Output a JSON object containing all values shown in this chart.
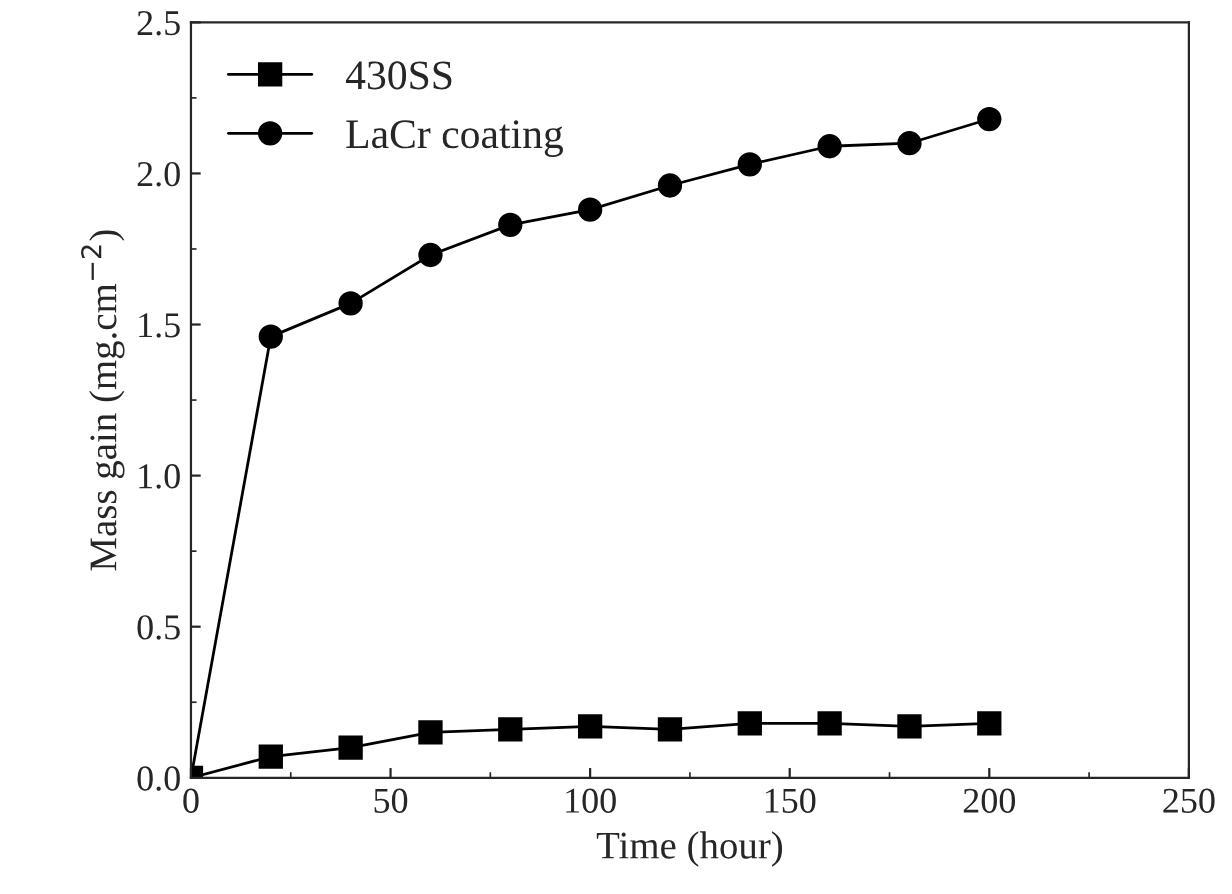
{
  "chart_data": {
    "type": "line",
    "xlabel": "Time (hour)",
    "ylabel": "Mass gain (mg.cm$^{−2}$)",
    "x": [
      0,
      20,
      40,
      60,
      80,
      100,
      120,
      140,
      160,
      180,
      200
    ],
    "series": [
      {
        "name": "430SS",
        "color": "#000000",
        "marker": "square",
        "values": [
          0,
          0.07,
          0.1,
          0.15,
          0.16,
          0.17,
          0.16,
          0.18,
          0.18,
          0.17,
          0.18
        ]
      },
      {
        "name": "LaCr coating",
        "color": "#000000",
        "marker": "circle",
        "values": [
          0,
          1.46,
          1.57,
          1.73,
          1.83,
          1.88,
          1.96,
          2.03,
          2.09,
          2.1,
          2.18
        ]
      }
    ],
    "xlim": [
      0,
      250
    ],
    "xticks": [
      0,
      50,
      100,
      150,
      200,
      250
    ],
    "ylim": [
      0,
      2.5
    ],
    "yticks": [
      {
        "value": 0,
        "label": "0.0"
      },
      {
        "value": 0.5,
        "label": "0.5"
      },
      {
        "value": 1.0,
        "label": "1.0"
      },
      {
        "value": 1.5,
        "label": "1.5"
      },
      {
        "value": 2.0,
        "label": "2.0"
      },
      {
        "value": 2.5,
        "label": "2.5"
      }
    ],
    "grid": false,
    "legend": "top left",
    "line_style": "solid"
  }
}
